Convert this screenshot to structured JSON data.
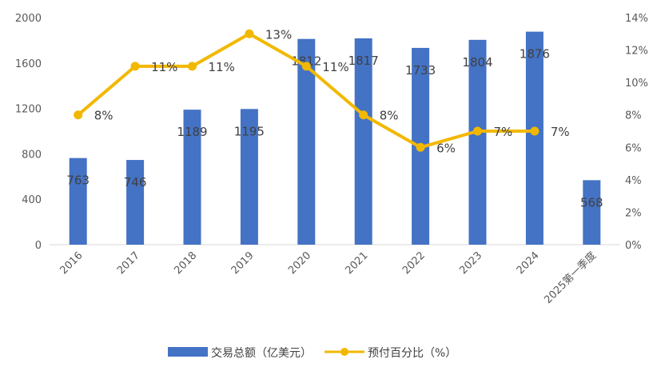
{
  "chart_data": {
    "type": "bar",
    "categories": [
      "2016",
      "2017",
      "2018",
      "2019",
      "2020",
      "2021",
      "2022",
      "2023",
      "2024",
      "2025第一季度"
    ],
    "series": [
      {
        "name": "交易总额（亿美元）",
        "type": "bar",
        "axis": "left",
        "color": "#4472C4",
        "values": [
          763,
          746,
          1189,
          1195,
          1812,
          1817,
          1733,
          1804,
          1876,
          568
        ],
        "labels": [
          "763",
          "746",
          "1189",
          "1195",
          "1812",
          "1817",
          "1733",
          "1804",
          "1876",
          "568"
        ]
      },
      {
        "name": "预付百分比（%）",
        "type": "line",
        "axis": "right",
        "color": "#F2B800",
        "values": [
          8,
          11,
          11,
          13,
          11,
          8,
          6,
          7,
          7,
          null
        ],
        "labels": [
          "8%",
          "11%",
          "11%",
          "13%",
          "11%",
          "8%",
          "6%",
          "7%",
          "7%",
          ""
        ]
      }
    ],
    "y_left": {
      "ticks": [
        "0",
        "400",
        "800",
        "1200",
        "1600",
        "2000"
      ],
      "ylim": [
        0,
        2000
      ]
    },
    "y_right": {
      "ticks": [
        "0%",
        "2%",
        "4%",
        "6%",
        "8%",
        "10%",
        "12%",
        "14%"
      ],
      "ylim": [
        0,
        14
      ]
    },
    "grid": false,
    "legend": "bottom"
  }
}
